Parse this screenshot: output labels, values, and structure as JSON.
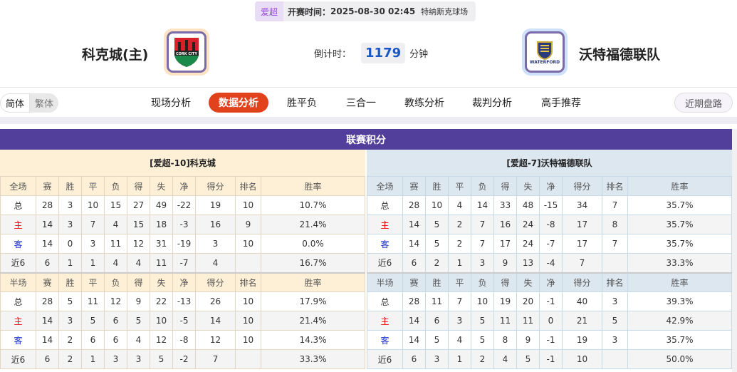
{
  "match": {
    "league": "爱超",
    "kickoff_label": "开赛时间：",
    "kickoff": "2025-08-30 02:45",
    "venue": "特纳斯克球场",
    "home": "科克城(主)",
    "away": "沃特福德联队",
    "home_logo_text": "CORK CITY",
    "away_logo_text": "WATERFORD",
    "countdown_label": "倒计时：",
    "countdown": "1179",
    "countdown_unit": "分钟"
  },
  "nav": {
    "lang": [
      "简体",
      "繁体"
    ],
    "tabs": [
      "现场分析",
      "数据分析",
      "胜平负",
      "三合一",
      "教练分析",
      "裁判分析",
      "高手推荐"
    ],
    "active": "数据分析",
    "recent": "近期盘路"
  },
  "standings": {
    "title": "联赛积分",
    "cols_full": [
      "全场",
      "赛",
      "胜",
      "平",
      "负",
      "得",
      "失",
      "净",
      "得分",
      "排名",
      "胜率"
    ],
    "cols_half": [
      "半场",
      "赛",
      "胜",
      "平",
      "负",
      "得",
      "失",
      "净",
      "得分",
      "排名",
      "胜率"
    ],
    "home": {
      "label": "[爱超-10]科克城",
      "full": [
        [
          "总",
          "28",
          "3",
          "10",
          "15",
          "27",
          "49",
          "-22",
          "19",
          "10",
          "10.7%"
        ],
        [
          "主",
          "14",
          "3",
          "7",
          "4",
          "15",
          "18",
          "-3",
          "16",
          "9",
          "21.4%"
        ],
        [
          "客",
          "14",
          "0",
          "3",
          "11",
          "12",
          "31",
          "-19",
          "3",
          "10",
          "0.0%"
        ],
        [
          "近6",
          "6",
          "1",
          "1",
          "4",
          "4",
          "11",
          "-7",
          "4",
          "",
          "16.7%"
        ]
      ],
      "half": [
        [
          "总",
          "28",
          "5",
          "11",
          "12",
          "9",
          "22",
          "-13",
          "26",
          "10",
          "17.9%"
        ],
        [
          "主",
          "14",
          "3",
          "5",
          "6",
          "5",
          "10",
          "-5",
          "14",
          "10",
          "21.4%"
        ],
        [
          "客",
          "14",
          "2",
          "6",
          "6",
          "4",
          "12",
          "-8",
          "12",
          "10",
          "14.3%"
        ],
        [
          "近6",
          "6",
          "2",
          "1",
          "3",
          "3",
          "5",
          "-2",
          "7",
          "",
          "33.3%"
        ]
      ]
    },
    "away": {
      "label": "[爱超-7]沃特福德联队",
      "full": [
        [
          "总",
          "28",
          "10",
          "4",
          "14",
          "33",
          "48",
          "-15",
          "34",
          "7",
          "35.7%"
        ],
        [
          "主",
          "14",
          "5",
          "2",
          "7",
          "16",
          "24",
          "-8",
          "17",
          "8",
          "35.7%"
        ],
        [
          "客",
          "14",
          "5",
          "2",
          "7",
          "17",
          "24",
          "-7",
          "17",
          "7",
          "35.7%"
        ],
        [
          "近6",
          "6",
          "2",
          "1",
          "3",
          "9",
          "13",
          "-4",
          "7",
          "",
          "33.3%"
        ]
      ],
      "half": [
        [
          "总",
          "28",
          "11",
          "7",
          "10",
          "19",
          "20",
          "-1",
          "40",
          "3",
          "39.3%"
        ],
        [
          "主",
          "14",
          "6",
          "3",
          "5",
          "11",
          "11",
          "0",
          "21",
          "5",
          "42.9%"
        ],
        [
          "客",
          "14",
          "5",
          "4",
          "5",
          "8",
          "9",
          "-1",
          "19",
          "3",
          "35.7%"
        ],
        [
          "近6",
          "6",
          "3",
          "1",
          "2",
          "4",
          "5",
          "-1",
          "10",
          "",
          "50.0%"
        ]
      ]
    }
  },
  "colors": {
    "accent": "#e2421b",
    "header": "#523f9b",
    "home_row": "#ee0000",
    "away_row": "#1b33cc"
  }
}
